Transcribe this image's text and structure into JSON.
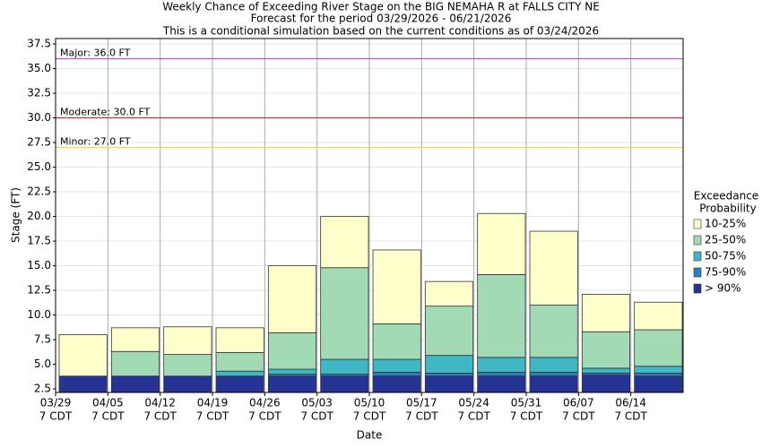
{
  "chart_data": {
    "type": "exceedance-bar",
    "title": [
      "Weekly Chance of Exceeding River Stage on the BIG NEMAHA R at FALLS CITY NE",
      "Forecast for the period 03/29/2026 - 06/21/2026",
      "This is a conditional simulation based on the current conditions as of 03/24/2026"
    ],
    "y_label": "Stage (FT)",
    "x_label": "Date",
    "categories": [
      [
        "03/29",
        "7 CDT"
      ],
      [
        "04/05",
        "7 CDT"
      ],
      [
        "04/12",
        "7 CDT"
      ],
      [
        "04/19",
        "7 CDT"
      ],
      [
        "04/26",
        "7 CDT"
      ],
      [
        "05/03",
        "7 CDT"
      ],
      [
        "05/10",
        "7 CDT"
      ],
      [
        "05/17",
        "7 CDT"
      ],
      [
        "05/24",
        "7 CDT"
      ],
      [
        "05/31",
        "7 CDT"
      ],
      [
        "06/07",
        "7 CDT"
      ],
      [
        "06/14",
        "7 CDT"
      ]
    ],
    "legend_title": [
      "Exceedance",
      "Probability"
    ],
    "series": [
      {
        "name": "> 90%",
        "color": "#253494",
        "values": [
          3.8,
          3.8,
          3.8,
          3.8,
          3.8,
          3.8,
          3.8,
          3.8,
          3.8,
          3.8,
          3.9,
          3.8
        ]
      },
      {
        "name": "75-90%",
        "color": "#2c7fb8",
        "values": [
          3.8,
          3.8,
          3.8,
          3.8,
          4.0,
          4.0,
          4.2,
          4.1,
          4.2,
          4.2,
          4.1,
          4.1
        ]
      },
      {
        "name": "50-75%",
        "color": "#41b6c4",
        "values": [
          3.8,
          3.8,
          3.8,
          4.3,
          4.5,
          5.5,
          5.5,
          5.9,
          5.7,
          5.7,
          4.6,
          4.8
        ]
      },
      {
        "name": "25-50%",
        "color": "#a1dab4",
        "values": [
          3.8,
          6.3,
          6.0,
          6.2,
          8.2,
          14.8,
          9.1,
          10.9,
          14.1,
          11.0,
          8.3,
          8.5
        ]
      },
      {
        "name": "10-25%",
        "color": "#ffffcc",
        "values": [
          8.0,
          8.7,
          8.8,
          8.7,
          15.0,
          20.0,
          16.6,
          13.4,
          20.3,
          18.5,
          12.1,
          11.3
        ]
      }
    ],
    "thresholds": [
      {
        "label": "Major: 36.0 FT",
        "value": 36,
        "color": "#cc44cc"
      },
      {
        "label": "Moderate: 30.0 FT",
        "value": 30,
        "color": "#dd2222"
      },
      {
        "label": "Minor: 27.0 FT",
        "value": 27,
        "color": "#e8e040"
      }
    ],
    "ylim": [
      2.14,
      38.05
    ],
    "yticks": [
      2.5,
      {
        "value": 5,
        "label": "5.0"
      },
      7.5,
      {
        "value": 10,
        "label": "10.0"
      },
      12.5,
      {
        "value": 15,
        "label": "15.0"
      },
      17.5,
      {
        "value": 20,
        "label": "20.0"
      },
      22.5,
      {
        "value": 25,
        "label": "25.0"
      },
      27.5,
      {
        "value": 30,
        "label": "30.0"
      },
      32.5,
      {
        "value": 35,
        "label": "35.0"
      },
      37.5
    ],
    "grid": true
  }
}
